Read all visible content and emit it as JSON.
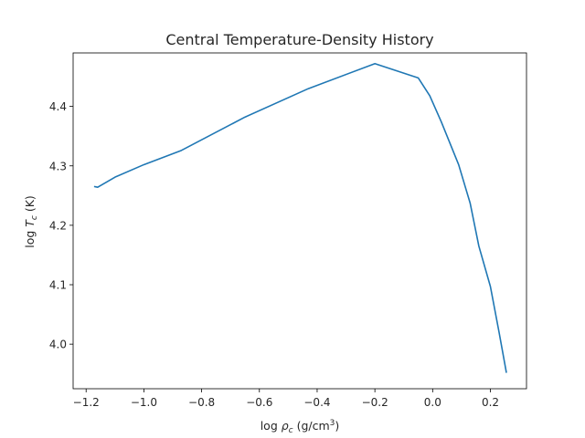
{
  "chart_data": {
    "type": "line",
    "title": "Central Temperature-Density History",
    "xlabel": {
      "prefix": "log ",
      "symbol": "ρ",
      "subscript": "c",
      "units_before": " (g/cm",
      "superscript": "3",
      "units_after": ")"
    },
    "ylabel": {
      "prefix": "log ",
      "symbol": "T",
      "subscript": "c",
      "units": " (K)"
    },
    "xlim": [
      -1.245,
      0.325
    ],
    "ylim": [
      3.925,
      4.49
    ],
    "xticks": [
      -1.2,
      -1.0,
      -0.8,
      -0.6,
      -0.4,
      -0.2,
      0.0,
      0.2
    ],
    "xtick_labels": [
      "−1.2",
      "−1.0",
      "−0.8",
      "−0.6",
      "−0.4",
      "−0.2",
      "0.0",
      "0.2"
    ],
    "yticks": [
      4.0,
      4.1,
      4.2,
      4.3,
      4.4
    ],
    "ytick_labels": [
      "4.0",
      "4.1",
      "4.2",
      "4.3",
      "4.4"
    ],
    "grid": false,
    "series": [
      {
        "color": "#1f77b4",
        "x": [
          -1.17,
          -1.16,
          -1.1,
          -1.0,
          -0.87,
          -0.65,
          -0.43,
          -0.2,
          -0.05,
          -0.01,
          0.03,
          0.09,
          0.13,
          0.16,
          0.2,
          0.23,
          0.255
        ],
        "y": [
          4.265,
          4.264,
          4.281,
          4.302,
          4.326,
          4.382,
          4.43,
          4.472,
          4.448,
          4.418,
          4.374,
          4.302,
          4.237,
          4.165,
          4.097,
          4.02,
          3.953
        ]
      }
    ]
  }
}
